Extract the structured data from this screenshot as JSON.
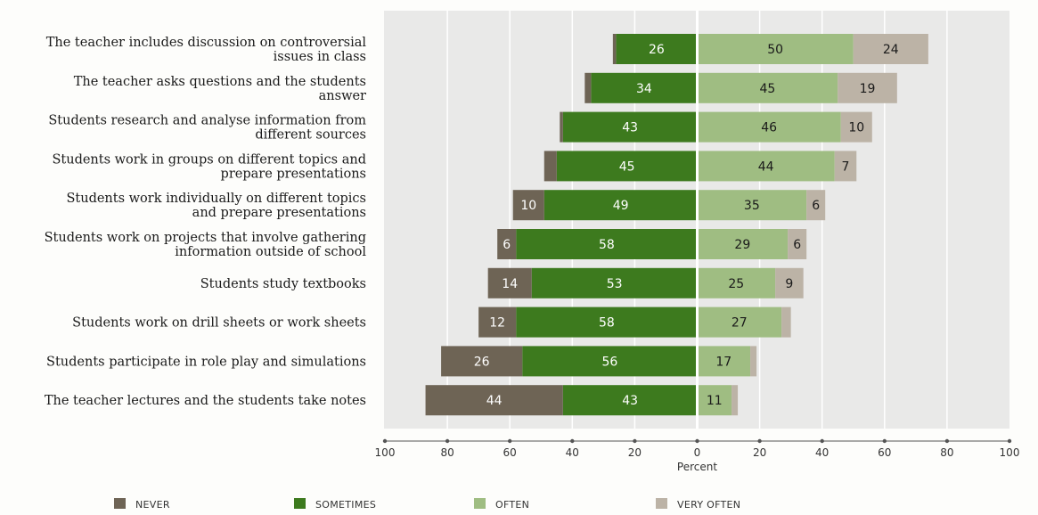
{
  "chart_data": {
    "type": "bar",
    "orientation": "horizontal-diverging",
    "categories": [
      [
        "The teacher includes discussion on controversial",
        "issues in class"
      ],
      [
        "The teacher asks questions and the students",
        "answer"
      ],
      [
        "Students research and analyse information from",
        "different sources"
      ],
      [
        "Students work in groups on different topics and",
        "prepare presentations"
      ],
      [
        "Students work individually on different topics",
        "and prepare presentations"
      ],
      [
        "Students work on projects that involve gathering",
        "information outside of school"
      ],
      [
        "Students study textbooks"
      ],
      [
        "Students work on drill sheets or work sheets"
      ],
      [
        "Students participate in role play and simulations"
      ],
      [
        "The teacher lectures and the students take notes"
      ]
    ],
    "series": [
      {
        "name": "NEVER",
        "side": "left",
        "color": "#6e6455",
        "label_color": "#ffffff",
        "values": [
          1,
          2,
          1,
          4,
          10,
          6,
          14,
          12,
          26,
          44
        ],
        "labels": [
          "",
          "",
          "",
          "",
          "10",
          "6",
          "14",
          "12",
          "26",
          "44"
        ]
      },
      {
        "name": "SOMETIMES",
        "side": "left",
        "color": "#3d7a1e",
        "label_color": "#ffffff",
        "values": [
          26,
          34,
          43,
          45,
          49,
          58,
          53,
          58,
          56,
          43
        ],
        "labels": [
          "26",
          "34",
          "43",
          "45",
          "49",
          "58",
          "53",
          "58",
          "56",
          "43"
        ]
      },
      {
        "name": "OFTEN",
        "side": "right",
        "color": "#9fbd82",
        "label_color": "#1a1a1a",
        "values": [
          50,
          45,
          46,
          44,
          35,
          29,
          25,
          27,
          17,
          11
        ],
        "labels": [
          "50",
          "45",
          "46",
          "44",
          "35",
          "29",
          "25",
          "27",
          "17",
          "11"
        ]
      },
      {
        "name": "VERY OFTEN",
        "side": "right",
        "color": "#bcb3a6",
        "label_color": "#1a1a1a",
        "values": [
          24,
          19,
          10,
          7,
          6,
          6,
          9,
          3,
          2,
          2
        ],
        "labels": [
          "24",
          "19",
          "10",
          "7",
          "6",
          "6",
          "9",
          "",
          "",
          ""
        ]
      }
    ],
    "xlabel": "Percent",
    "xlim": [
      -100,
      100
    ],
    "xticks": [
      -100,
      -80,
      -60,
      -40,
      -20,
      0,
      20,
      40,
      60,
      80,
      100
    ],
    "xtick_labels": [
      "100",
      "80",
      "60",
      "40",
      "20",
      "0",
      "20",
      "40",
      "60",
      "80",
      "100"
    ],
    "plot_background": "#e9e9e8",
    "grid": true,
    "legend_position": "bottom"
  }
}
